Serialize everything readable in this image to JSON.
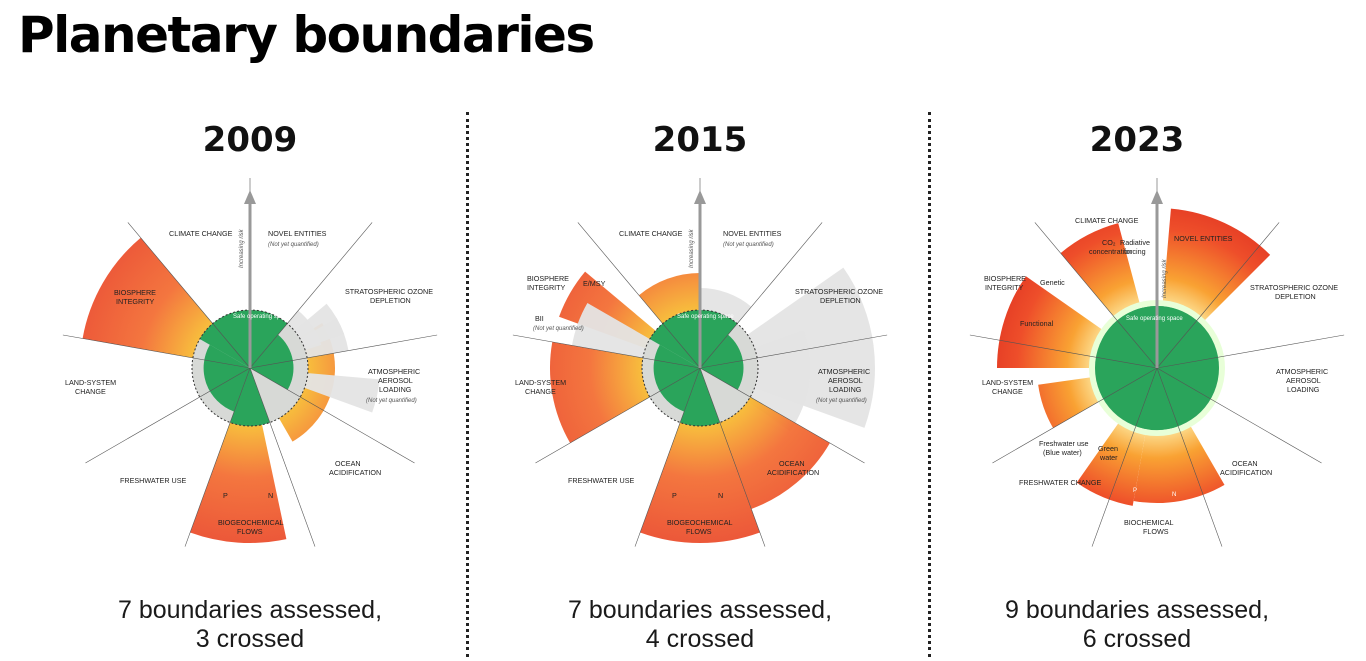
{
  "page_title": "Planetary boundaries",
  "panels": [
    {
      "year": "2009",
      "caption_line1": "7 boundaries assessed,",
      "caption_line2": "3 crossed",
      "risk_axis_label": "Increasing risk",
      "safe_space_label": "Safe operating space",
      "labels": {
        "climate": "CLIMATE CHANGE",
        "novel": "NOVEL ENTITIES",
        "novel_note": "(Not yet quantified)",
        "ozone1": "STRATOSPHERIC OZONE",
        "ozone2": "DEPLETION",
        "aero1": "ATMOSPHERIC",
        "aero2": "AEROSOL",
        "aero3": "LOADING",
        "aero_note": "(Not yet quantified)",
        "ocean1": "OCEAN",
        "ocean2": "ACIDIFICATION",
        "bio1": "BIOGEOCHEMICAL",
        "bio2": "FLOWS",
        "p": "P",
        "n": "N",
        "fresh": "FRESHWATER USE",
        "land1": "LAND-SYSTEM",
        "land2": "CHANGE",
        "bi1": "BIOSPHERE",
        "bi2": "INTEGRITY"
      }
    },
    {
      "year": "2015",
      "caption_line1": "7 boundaries assessed,",
      "caption_line2": "4 crossed",
      "risk_axis_label": "Increasing risk",
      "safe_space_label": "Safe operating space",
      "labels": {
        "climate": "CLIMATE CHANGE",
        "novel": "NOVEL ENTITIES",
        "novel_note": "(Not yet quantified)",
        "ozone1": "STRATOSPHERIC OZONE",
        "ozone2": "DEPLETION",
        "aero1": "ATMOSPHERIC",
        "aero2": "AEROSOL",
        "aero3": "LOADING",
        "aero_note": "(Not yet quantified)",
        "ocean1": "OCEAN",
        "ocean2": "ACIDIFICATION",
        "bio1": "BIOGEOCHEMICAL",
        "bio2": "FLOWS",
        "p": "P",
        "n": "N",
        "fresh": "FRESHWATER USE",
        "land1": "LAND-SYSTEM",
        "land2": "CHANGE",
        "bi1": "BIOSPHERE",
        "bi2": "INTEGRITY",
        "emsy": "E/MSY",
        "bii": "BII",
        "bii_note": "(Not yet quantified)"
      }
    },
    {
      "year": "2023",
      "caption_line1": "9 boundaries assessed,",
      "caption_line2": "6 crossed",
      "risk_axis_label": "Increasing risk",
      "safe_space_label": "Safe operating space",
      "labels": {
        "climate": "CLIMATE CHANGE",
        "co2a": "CO₂",
        "co2b": "concentration",
        "rad1": "Radiative",
        "rad2": "forcing",
        "novel": "NOVEL ENTITIES",
        "ozone1": "STRATOSPHERIC OZONE",
        "ozone2": "DEPLETION",
        "aero1": "ATMOSPHERIC",
        "aero2": "AEROSOL",
        "aero3": "LOADING",
        "ocean1": "OCEAN",
        "ocean2": "ACIDIFICATION",
        "bio1": "BIOCHEMICAL",
        "bio2": "FLOWS",
        "p": "P",
        "n": "N",
        "fresh": "FRESHWATER CHANGE",
        "blue1": "Freshwater use",
        "blue2": "(Blue water)",
        "green1": "Green",
        "green2": "water",
        "land1": "LAND-SYSTEM",
        "land2": "CHANGE",
        "bi1": "BIOSPHERE",
        "bi2": "INTEGRITY",
        "genetic": "Genetic",
        "functional": "Functional"
      }
    }
  ]
}
